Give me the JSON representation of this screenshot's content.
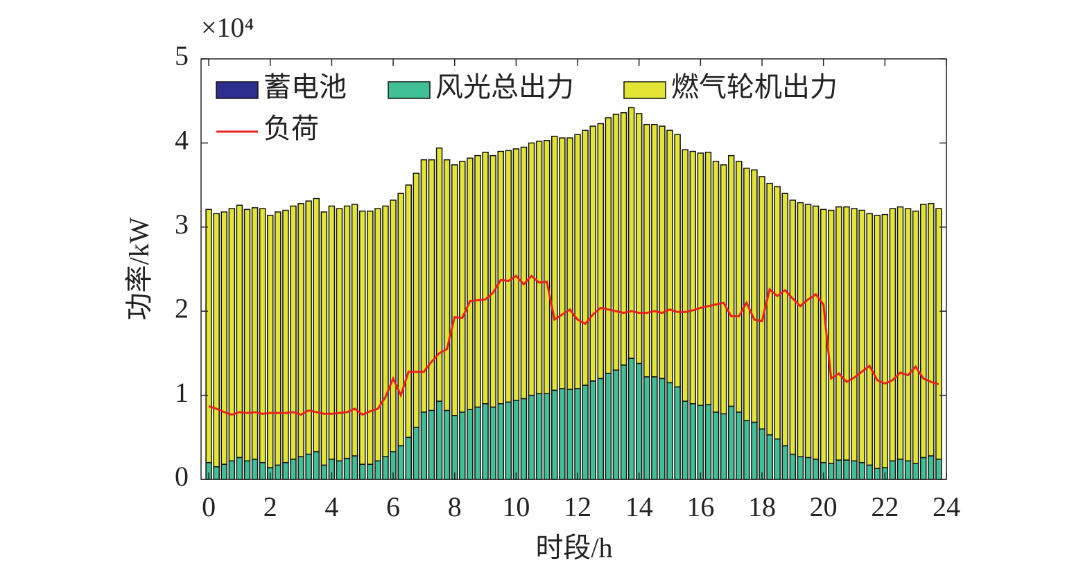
{
  "chart_data": {
    "type": "stacked-bar-line",
    "y_label": "功率/kW",
    "x_label": "时段/h",
    "y_multiplier": "×10⁴",
    "x": [
      0,
      0.25,
      0.5,
      0.75,
      1,
      1.25,
      1.5,
      1.75,
      2,
      2.25,
      2.5,
      2.75,
      3,
      3.25,
      3.5,
      3.75,
      4,
      4.25,
      4.5,
      4.75,
      5,
      5.25,
      5.5,
      5.75,
      6,
      6.25,
      6.5,
      6.75,
      7,
      7.25,
      7.5,
      7.75,
      8,
      8.25,
      8.5,
      8.75,
      9,
      9.25,
      9.5,
      9.75,
      10,
      10.25,
      10.5,
      10.75,
      11,
      11.25,
      11.5,
      11.75,
      12,
      12.25,
      12.5,
      12.75,
      13,
      13.25,
      13.5,
      13.75,
      14,
      14.25,
      14.5,
      14.75,
      15,
      15.25,
      15.5,
      15.75,
      16,
      16.25,
      16.5,
      16.75,
      17,
      17.25,
      17.5,
      17.75,
      18,
      18.25,
      18.5,
      18.75,
      19,
      19.25,
      19.5,
      19.75,
      20,
      20.25,
      20.5,
      20.75,
      21,
      21.25,
      21.5,
      21.75,
      22,
      22.25,
      22.5,
      22.75,
      23,
      23.25,
      23.5,
      23.75
    ],
    "series": [
      {
        "name": "蓄电池",
        "color": "#2e2e8e",
        "kind": "bar",
        "values": [
          0,
          0,
          0,
          0,
          0,
          0,
          0,
          0,
          0,
          0,
          0,
          0,
          0,
          0,
          0,
          0,
          0,
          0,
          0,
          0,
          0,
          0,
          0,
          0,
          0,
          0,
          0,
          0,
          0,
          0,
          0,
          0,
          0,
          0,
          0,
          0,
          0,
          0,
          0,
          0,
          0,
          0,
          0,
          0,
          0,
          0,
          0,
          0,
          0,
          0,
          0,
          0,
          0,
          0,
          0,
          0,
          0,
          0,
          0,
          0,
          0,
          0,
          0,
          0,
          0,
          0,
          0,
          0,
          0,
          0,
          0,
          0,
          0,
          0,
          0,
          0,
          0,
          0,
          0,
          0,
          0,
          0,
          0,
          0,
          0,
          0,
          0,
          0,
          0,
          0,
          0,
          0,
          0,
          0,
          0,
          0
        ]
      },
      {
        "name": "风光总出力",
        "color": "#41bf97",
        "kind": "bar",
        "values": [
          0.2,
          0.15,
          0.18,
          0.22,
          0.26,
          0.22,
          0.24,
          0.2,
          0.14,
          0.17,
          0.2,
          0.24,
          0.27,
          0.3,
          0.33,
          0.17,
          0.24,
          0.22,
          0.25,
          0.28,
          0.18,
          0.18,
          0.22,
          0.27,
          0.33,
          0.4,
          0.5,
          0.62,
          0.8,
          0.82,
          0.93,
          0.82,
          0.76,
          0.8,
          0.83,
          0.86,
          0.9,
          0.86,
          0.9,
          0.92,
          0.94,
          0.96,
          1.0,
          1.02,
          1.02,
          1.06,
          1.08,
          1.07,
          1.08,
          1.12,
          1.17,
          1.2,
          1.26,
          1.3,
          1.36,
          1.44,
          1.38,
          1.22,
          1.22,
          1.2,
          1.15,
          1.1,
          0.93,
          0.9,
          0.88,
          0.89,
          0.8,
          0.78,
          0.87,
          0.8,
          0.7,
          0.68,
          0.6,
          0.53,
          0.48,
          0.4,
          0.3,
          0.27,
          0.26,
          0.24,
          0.2,
          0.19,
          0.23,
          0.23,
          0.22,
          0.2,
          0.17,
          0.13,
          0.14,
          0.22,
          0.24,
          0.22,
          0.19,
          0.26,
          0.28,
          0.24
        ]
      },
      {
        "name": "燃气轮机出力",
        "color": "#e2e535",
        "kind": "bar",
        "values": [
          3.01,
          3.01,
          3.0,
          3.0,
          3.0,
          2.99,
          2.99,
          3.02,
          3.0,
          3.01,
          3.0,
          3.01,
          3.01,
          3.01,
          3.01,
          3.01,
          3.01,
          3.0,
          3.0,
          2.99,
          3.01,
          3.01,
          3.0,
          2.98,
          2.99,
          3.0,
          3.0,
          3.02,
          3.0,
          2.98,
          3.01,
          2.98,
          2.98,
          2.98,
          2.99,
          2.99,
          2.99,
          2.99,
          3.0,
          2.99,
          2.99,
          2.99,
          3.0,
          3.0,
          3.01,
          3.02,
          2.98,
          2.99,
          3.02,
          3.03,
          3.03,
          3.03,
          3.04,
          3.04,
          3.0,
          2.98,
          2.97,
          3.0,
          3.0,
          3.0,
          3.0,
          3.0,
          2.99,
          3.0,
          3.0,
          3.0,
          2.98,
          2.96,
          2.98,
          2.98,
          3.0,
          3.0,
          3.0,
          2.99,
          3.0,
          3.0,
          3.02,
          3.02,
          3.01,
          3.01,
          3.01,
          3.01,
          3.01,
          3.01,
          3.0,
          3.0,
          2.99,
          3.01,
          3.01,
          3.0,
          3.0,
          3.0,
          3.0,
          3.01,
          3.0,
          2.98
        ]
      },
      {
        "name": "负荷",
        "color": "#e8231e",
        "kind": "line",
        "values": [
          0.87,
          0.84,
          0.8,
          0.77,
          0.8,
          0.79,
          0.8,
          0.78,
          0.79,
          0.79,
          0.79,
          0.8,
          0.77,
          0.82,
          0.8,
          0.78,
          0.78,
          0.79,
          0.8,
          0.84,
          0.77,
          0.81,
          0.84,
          0.98,
          1.2,
          1.0,
          1.28,
          1.28,
          1.28,
          1.4,
          1.5,
          1.55,
          1.93,
          1.92,
          2.12,
          2.13,
          2.14,
          2.22,
          2.37,
          2.36,
          2.42,
          2.32,
          2.42,
          2.34,
          2.35,
          1.9,
          1.96,
          2.02,
          1.9,
          1.85,
          1.96,
          2.04,
          2.02,
          2.0,
          1.98,
          2.0,
          1.98,
          1.98,
          2.0,
          1.98,
          2.02,
          1.99,
          1.99,
          2.01,
          2.04,
          2.06,
          2.08,
          2.1,
          1.94,
          1.94,
          2.1,
          1.9,
          1.88,
          2.26,
          2.18,
          2.25,
          2.15,
          2.06,
          2.14,
          2.2,
          2.08,
          1.2,
          1.26,
          1.16,
          1.21,
          1.28,
          1.35,
          1.18,
          1.14,
          1.18,
          1.27,
          1.24,
          1.34,
          1.2,
          1.16,
          1.13
        ]
      }
    ],
    "xlim": [
      -0.25,
      24
    ],
    "ylim": [
      0,
      5
    ],
    "xticks": [
      0,
      2,
      4,
      6,
      8,
      10,
      12,
      14,
      16,
      18,
      20,
      22,
      24
    ],
    "yticks": [
      0,
      1,
      2,
      3,
      4,
      5
    ],
    "legend": "upper left"
  }
}
